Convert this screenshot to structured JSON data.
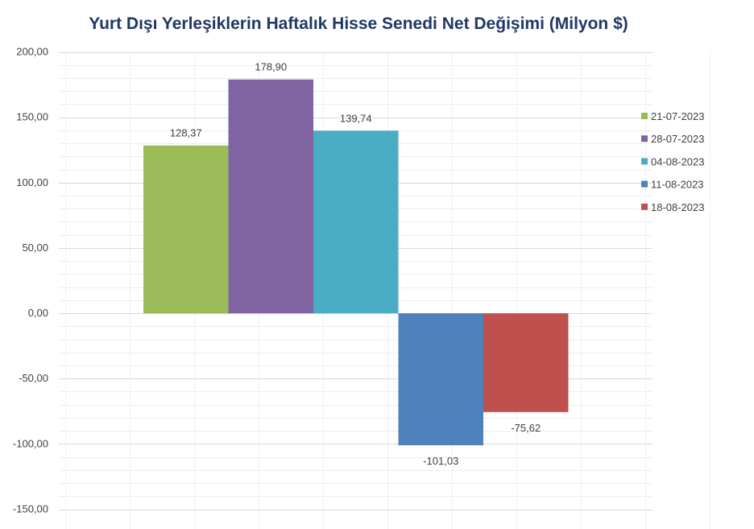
{
  "chart_data": {
    "type": "bar",
    "title": "Yurt Dışı Yerleşiklerin Haftalık Hisse Senedi Net Değişimi (Milyon $)",
    "xlabel": "",
    "ylabel": "",
    "ylim": [
      -150,
      200
    ],
    "yticks": [
      "200,00",
      "150,00",
      "100,00",
      "50,00",
      "0,00",
      "-50,00",
      "-100,00",
      "-150,00"
    ],
    "ytick_values": [
      200,
      150,
      100,
      50,
      0,
      -50,
      -100,
      -150
    ],
    "grid": true,
    "legend_position": "right",
    "series": [
      {
        "name": "21-07-2023",
        "values": [
          128.37
        ],
        "label": "128,37",
        "color": "#9BBB59"
      },
      {
        "name": "28-07-2023",
        "values": [
          178.9
        ],
        "label": "178,90",
        "color": "#8064A2"
      },
      {
        "name": "04-08-2023",
        "values": [
          139.74
        ],
        "label": "139,74",
        "color": "#4BACC6"
      },
      {
        "name": "11-08-2023",
        "values": [
          -101.03
        ],
        "label": "-101,03",
        "color": "#4F81BD"
      },
      {
        "name": "18-08-2023",
        "values": [
          -75.62
        ],
        "label": "-75,62",
        "color": "#C0504D"
      }
    ]
  }
}
